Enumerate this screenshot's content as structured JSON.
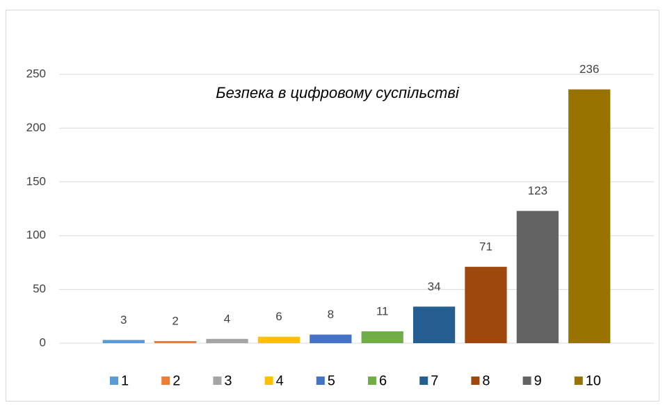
{
  "chart_data": {
    "type": "bar",
    "title": "Безпека в цифровому суспільстві",
    "categories": [
      null
    ],
    "series": [
      {
        "name": "1",
        "color": "#5b9bd5",
        "values": [
          3
        ]
      },
      {
        "name": "2",
        "color": "#ed7d31",
        "values": [
          2
        ]
      },
      {
        "name": "3",
        "color": "#a5a5a5",
        "values": [
          4
        ]
      },
      {
        "name": "4",
        "color": "#ffc000",
        "values": [
          6
        ]
      },
      {
        "name": "5",
        "color": "#4472c4",
        "values": [
          8
        ]
      },
      {
        "name": "6",
        "color": "#70ad47",
        "values": [
          11
        ]
      },
      {
        "name": "7",
        "color": "#255e91",
        "values": [
          34
        ]
      },
      {
        "name": "8",
        "color": "#9e480e",
        "values": [
          71
        ]
      },
      {
        "name": "9",
        "color": "#636363",
        "values": [
          123
        ]
      },
      {
        "name": "10",
        "color": "#997300",
        "values": [
          236
        ]
      }
    ],
    "ylim": [
      0,
      250
    ],
    "yticks": [
      0,
      50,
      100,
      150,
      200,
      250
    ],
    "grid": true,
    "legend": "bottom"
  }
}
